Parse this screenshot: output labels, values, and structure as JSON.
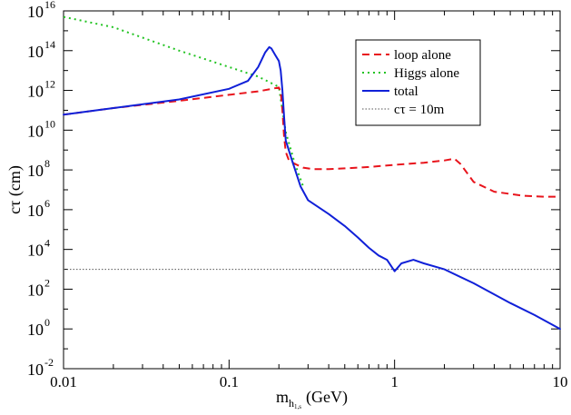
{
  "chart_data": {
    "type": "line",
    "xlabel": "m",
    "xlabel_sub": "h",
    "xlabel_subsub": "1,s",
    "xlabel_unit": "(GeV)",
    "ylabel": "cτ (cm)",
    "xscale": "log",
    "yscale": "log",
    "xlim": [
      0.01,
      10
    ],
    "ylim": [
      0.01,
      1e+16
    ],
    "x_ticks": [
      {
        "value": 0.01,
        "label": "0.01"
      },
      {
        "value": 0.1,
        "label": "0.1"
      },
      {
        "value": 1,
        "label": "1"
      },
      {
        "value": 10,
        "label": "10"
      }
    ],
    "y_ticks": [
      {
        "value": 0.01,
        "base": "10",
        "exp": "-2"
      },
      {
        "value": 1,
        "base": "10",
        "exp": "0"
      },
      {
        "value": 100,
        "base": "10",
        "exp": "2"
      },
      {
        "value": 10000,
        "base": "10",
        "exp": "4"
      },
      {
        "value": 1000000,
        "base": "10",
        "exp": "6"
      },
      {
        "value": 100000000,
        "base": "10",
        "exp": "8"
      },
      {
        "value": 10000000000,
        "base": "10",
        "exp": "10"
      },
      {
        "value": 1000000000000,
        "base": "10",
        "exp": "12"
      },
      {
        "value": 100000000000000,
        "base": "10",
        "exp": "14"
      },
      {
        "value": 10000000000000000,
        "base": "10",
        "exp": "16"
      }
    ],
    "grid": false,
    "legend_position": "top-right",
    "series": [
      {
        "name": "loop alone",
        "color": "#e8141c",
        "style": "dashed",
        "x": [
          0.01,
          0.02,
          0.05,
          0.1,
          0.15,
          0.2,
          0.205,
          0.21,
          0.215,
          0.22,
          0.23,
          0.25,
          0.28,
          0.32,
          0.4,
          0.5,
          0.7,
          1.0,
          1.5,
          2.0,
          2.3,
          2.5,
          3.0,
          4.0,
          6.0,
          8.0,
          10.0
        ],
        "y": [
          60000000000.0,
          130000000000.0,
          300000000000.0,
          600000000000.0,
          900000000000.0,
          1400000000000.0,
          900000000000.0,
          100000000000.0,
          5000000000.0,
          800000000.0,
          300000000.0,
          200000000.0,
          130000000.0,
          110000000.0,
          110000000.0,
          120000000.0,
          140000000.0,
          180000000.0,
          230000000.0,
          300000000.0,
          370000000.0,
          200000000.0,
          25000000.0,
          8000000.0,
          5000000.0,
          4500000.0,
          4500000.0
        ]
      },
      {
        "name": "Higgs alone",
        "color": "#22c322",
        "style": "dotted",
        "x": [
          0.01,
          0.02,
          0.05,
          0.1,
          0.15,
          0.2,
          0.22,
          0.25,
          0.28
        ],
        "y": [
          5000000000000000.0,
          1500000000000000.0,
          100000000000000.0,
          15000000000000.0,
          5000000000000.0,
          1500000000000.0,
          8000000000.0,
          200000000.0,
          15000000.0
        ]
      },
      {
        "name": "total",
        "color": "#1020d8",
        "style": "solid",
        "x": [
          0.01,
          0.02,
          0.05,
          0.1,
          0.13,
          0.15,
          0.165,
          0.175,
          0.18,
          0.19,
          0.2,
          0.205,
          0.21,
          0.215,
          0.22,
          0.24,
          0.27,
          0.3,
          0.4,
          0.5,
          0.6,
          0.7,
          0.8,
          0.9,
          1.0,
          1.1,
          1.3,
          1.5,
          2.0,
          3.0,
          5.0,
          7.0,
          10.0
        ],
        "y": [
          60000000000.0,
          130000000000.0,
          350000000000.0,
          1200000000000.0,
          3000000000000.0,
          15000000000000.0,
          80000000000000.0,
          150000000000000.0,
          130000000000000.0,
          60000000000000.0,
          30000000000000.0,
          10000000000000.0,
          1000000000000.0,
          50000000000.0,
          3000000000.0,
          300000000.0,
          15000000.0,
          3000000.0,
          600000.0,
          150000.0,
          40000.0,
          12000.0,
          5000.0,
          3000.0,
          800.0,
          2000.0,
          3000.0,
          2000.0,
          1000.0,
          200.0,
          20.0,
          5,
          1
        ]
      },
      {
        "name": "cτ = 10m",
        "color": "#555555",
        "style": "thin-dotted",
        "x": [
          0.01,
          10
        ],
        "y": [
          1000,
          1000
        ]
      }
    ]
  }
}
